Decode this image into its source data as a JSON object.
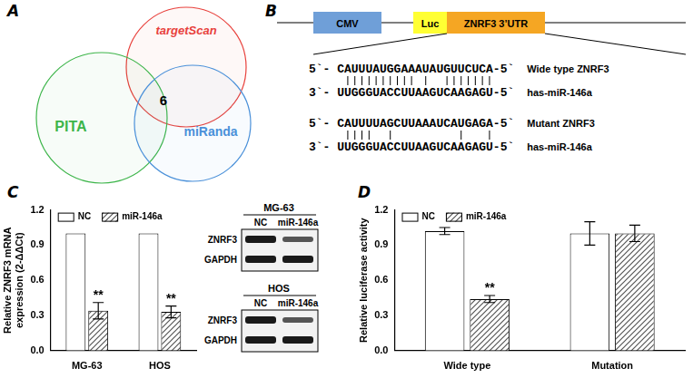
{
  "panel_labels": [
    "A",
    "B",
    "C",
    "D"
  ],
  "venn": {
    "sets": [
      {
        "name": "targetScan",
        "color": "#e8413c"
      },
      {
        "name": "PITA",
        "color": "#3db54a"
      },
      {
        "name": "miRanda",
        "color": "#4a90d9"
      }
    ],
    "intersection": 6
  },
  "construct": {
    "elements": [
      {
        "label": "CMV",
        "color": "#6f9fd8"
      },
      {
        "label": "Luc",
        "color": "#ffff33"
      },
      {
        "label": "ZNRF3 3’UTR",
        "color": "#f5a623"
      }
    ],
    "alignments": [
      {
        "target": "5`- CAUUUAUGGAAAUAUGUUCUCA-5`",
        "target_label": "Wide type ZNRF3",
        "mirna": "3`- UUGGGUACCUUAAGUCAAGAGU-5`",
        "mirna_label": "has-miR-146a"
      },
      {
        "target": "5`- CAUUUUAGCUUAAAUCAUGAGA-5`",
        "target_label": "Mutant ZNRF3",
        "mirna": "3`- UUGGGUACCUUAAGUCAAGAGU-5`",
        "mirna_label": "has-miR-146a"
      }
    ]
  },
  "blots": [
    {
      "cell": "MG-63",
      "lanes": [
        "NC",
        "miR-146a"
      ],
      "rows": [
        "ZNRF3",
        "GAPDH"
      ]
    },
    {
      "cell": "HOS",
      "lanes": [
        "NC",
        "miR-146a"
      ],
      "rows": [
        "ZNRF3",
        "GAPDH"
      ]
    }
  ],
  "chart_data": [
    {
      "type": "bar",
      "ylabel": [
        "Relative ZNRF3 mRNA",
        "expression (2-ΔΔCt)"
      ],
      "categories": [
        "MG-63",
        "HOS"
      ],
      "series": [
        {
          "name": "NC",
          "color": "#ffffff",
          "values": [
            1,
            1
          ]
        },
        {
          "name": "miR-146a",
          "color": "#555555",
          "values": [
            0.34,
            0.33
          ],
          "errors": [
            0.07,
            0.05
          ]
        }
      ],
      "ylim": [
        0,
        1.2
      ],
      "yticks": [
        {
          "value": 0,
          "label": "0.0"
        },
        0.3,
        0.6,
        0.9,
        1.2
      ],
      "grid": false,
      "legend": "top-left",
      "annotations": [
        {
          "text": "**",
          "category": "MG-63",
          "series": "miR-146a"
        },
        {
          "text": "**",
          "category": "HOS",
          "series": "miR-146a"
        }
      ]
    },
    {
      "type": "bar",
      "ylabel": "Relative luciferase activity",
      "categories": [
        "Wide type",
        "Mutation"
      ],
      "series": [
        {
          "name": "NC",
          "color": "#ffffff",
          "values": [
            1.02,
            1.0
          ],
          "errors": [
            0.03,
            0.1
          ]
        },
        {
          "name": "miR-146a",
          "color": "#555555",
          "values": [
            0.44,
            1.0
          ],
          "errors": [
            0.03,
            0.07
          ]
        }
      ],
      "ylim": [
        0,
        1.2
      ],
      "yticks": [
        {
          "value": 0,
          "label": "0.0"
        },
        0.3,
        0.6,
        0.9,
        1.2
      ],
      "grid": false,
      "legend": "top-left",
      "annotations": [
        {
          "text": "**",
          "category": "Wide type",
          "series": "miR-146a"
        }
      ]
    }
  ]
}
